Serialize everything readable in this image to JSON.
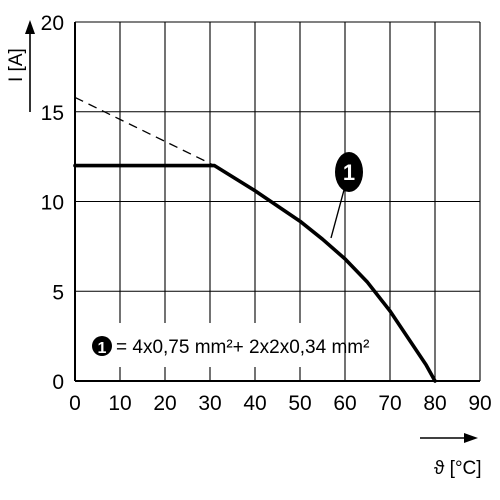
{
  "chart_data": {
    "type": "line",
    "xlabel": "ϑ [°C]",
    "ylabel": "I [A]",
    "xlim": [
      0,
      90
    ],
    "ylim": [
      0,
      20
    ],
    "x_ticks": [
      "0",
      "10",
      "20",
      "30",
      "40",
      "50",
      "60",
      "70",
      "80",
      "90"
    ],
    "y_ticks": [
      "0",
      "5",
      "10",
      "15",
      "20"
    ],
    "grid": true,
    "series": [
      {
        "style": "solid",
        "x": [
          0,
          31,
          40,
          50,
          55,
          60,
          65,
          70,
          74,
          78,
          80
        ],
        "y": [
          12,
          12,
          10.6,
          8.9,
          7.9,
          6.8,
          5.5,
          3.9,
          2.4,
          0.9,
          0
        ]
      },
      {
        "style": "dashed",
        "x": [
          0,
          31
        ],
        "y": [
          15.8,
          12
        ]
      }
    ],
    "annotations": [
      {
        "marker": "1",
        "legend_text": "= 4x0,75 mm²+ 2x2x0,34 mm²"
      }
    ],
    "colors": {
      "line": "#000000",
      "grid": "#000000",
      "background": "#ffffff"
    }
  }
}
